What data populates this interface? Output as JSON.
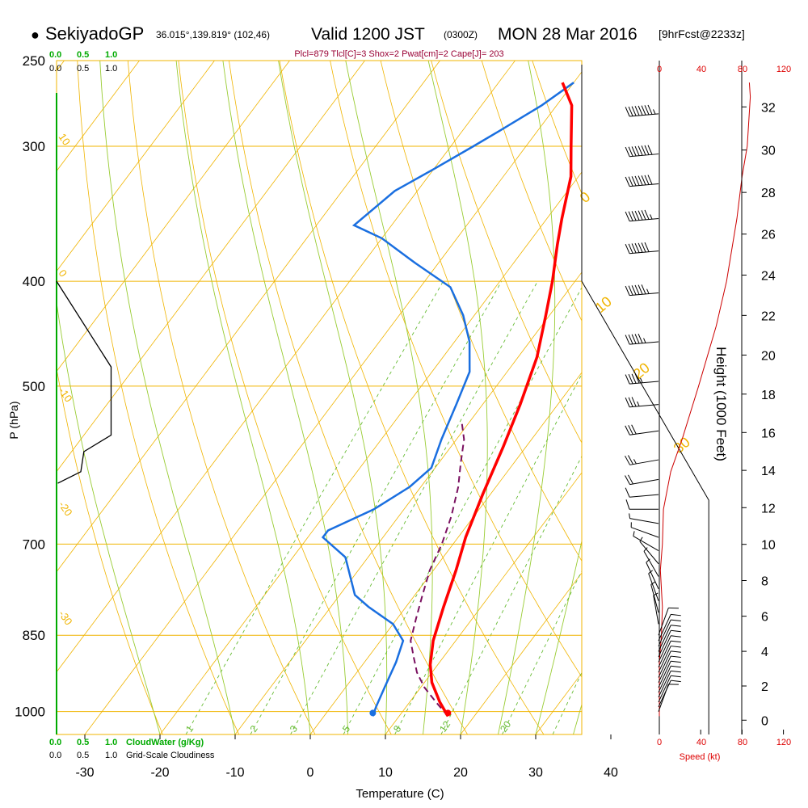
{
  "header": {
    "bullet": "●",
    "station": "SekiyadoGP",
    "coords": "36.015°,139.819° (102,46)",
    "valid": "Valid 1200 JST",
    "utc": "(0300Z)",
    "date": "MON 28 Mar 2016",
    "fcst": "[9hrFcst@2233z]"
  },
  "indices": "Plcl=879 Tlcl[C]=3 Shox=2 Pwat[cm]=2 Cape[J]= 203",
  "colors": {
    "isobar": "#f0b400",
    "dry_adiabat": "#f0b400",
    "moist_adiabat": "#99cc33",
    "mixing_ratio": "#66bb33",
    "temperature": "#ff0000",
    "dewpoint": "#1a6fe0",
    "parcel": "#7a1060",
    "cloud_water": "#00aa00",
    "wind_speed": "#cc0000",
    "cloudiness": "#000000",
    "wind_barb": "#000000"
  },
  "legend": {
    "cloudwater_scale": [
      "0.0",
      "0.5",
      "1.0"
    ],
    "cloudiness_scale": [
      "0.0",
      "0.5",
      "1.0"
    ],
    "cloudwater_label": "CloudWater (g/Kg)",
    "cloudiness_label": "Grid-Scale Cloudiness",
    "speed_ticks": [
      "0",
      "40",
      "80",
      "120"
    ],
    "speed_label": "Speed (kt)"
  },
  "chart_data": {
    "type": "skew-t log-p sounding",
    "xlabel": "Temperature (C)",
    "ylabel": "P (hPa)",
    "y2label": "Height (1000 Feet)",
    "x_ticks": [
      -30,
      -20,
      -10,
      0,
      10,
      20,
      30,
      40
    ],
    "pressure_ticks": [
      250,
      300,
      400,
      500,
      700,
      850,
      1000
    ],
    "height_ticks_kft": [
      0,
      2,
      4,
      6,
      8,
      10,
      12,
      14,
      16,
      18,
      20,
      22,
      24,
      26,
      28,
      30,
      32
    ],
    "isotherm_labels": [
      "10",
      "0",
      "-10",
      "-20",
      "-30"
    ],
    "isotherm_right_labels": [
      "0",
      "10",
      "20",
      "30"
    ],
    "mixing_ratio_labels": [
      "1",
      "2",
      "3",
      "5",
      "8",
      "12",
      "20"
    ],
    "series": [
      {
        "name": "temperature",
        "points": [
          [
            16.5,
            1010
          ],
          [
            14,
            980
          ],
          [
            11,
            940
          ],
          [
            9,
            905
          ],
          [
            7,
            860
          ],
          [
            5,
            800
          ],
          [
            3,
            740
          ],
          [
            1,
            690
          ],
          [
            -1,
            630
          ],
          [
            -3,
            570
          ],
          [
            -5,
            520
          ],
          [
            -7.5,
            470
          ],
          [
            -10.5,
            430
          ],
          [
            -13,
            400
          ],
          [
            -16,
            370
          ],
          [
            -18,
            350
          ],
          [
            -21,
            320
          ],
          [
            -24,
            300
          ],
          [
            -28,
            275
          ],
          [
            -31.5,
            262
          ]
        ]
      },
      {
        "name": "dewpoint",
        "points": [
          [
            6.5,
            1010
          ],
          [
            6,
            990
          ],
          [
            5.2,
            950
          ],
          [
            4.2,
            900
          ],
          [
            3,
            860
          ],
          [
            0,
            830
          ],
          [
            -5,
            800
          ],
          [
            -8,
            780
          ],
          [
            -13,
            720
          ],
          [
            -18,
            690
          ],
          [
            -18,
            680
          ],
          [
            -14,
            650
          ],
          [
            -11.5,
            620
          ],
          [
            -10.5,
            595
          ],
          [
            -12,
            560
          ],
          [
            -13.5,
            520
          ],
          [
            -15,
            485
          ],
          [
            -18,
            455
          ],
          [
            -21.5,
            430
          ],
          [
            -26,
            405
          ],
          [
            -33,
            385
          ],
          [
            -40,
            365
          ],
          [
            -45,
            355
          ],
          [
            -43,
            330
          ],
          [
            -40,
            315
          ],
          [
            -37,
            300
          ],
          [
            -35,
            290
          ],
          [
            -32,
            275
          ],
          [
            -30,
            262
          ]
        ]
      },
      {
        "name": "parcel",
        "points": [
          [
            16.5,
            1010
          ],
          [
            13.5,
            980
          ],
          [
            10.5,
            950
          ],
          [
            8,
            920
          ],
          [
            6,
            890
          ],
          [
            4,
            860
          ],
          [
            2.5,
            820
          ],
          [
            1,
            780
          ],
          [
            -0.5,
            740
          ],
          [
            -1.5,
            700
          ],
          [
            -3,
            660
          ],
          [
            -5,
            620
          ],
          [
            -7,
            590
          ],
          [
            -9,
            560
          ],
          [
            -11,
            540
          ]
        ]
      },
      {
        "name": "wind_speed",
        "points_kt": [
          [
            0,
            1010
          ],
          [
            0,
            900
          ],
          [
            2,
            850
          ],
          [
            3,
            800
          ],
          [
            1,
            740
          ],
          [
            3,
            700
          ],
          [
            4,
            650
          ],
          [
            11,
            600
          ],
          [
            22,
            560
          ],
          [
            38,
            500
          ],
          [
            55,
            440
          ],
          [
            65,
            400
          ],
          [
            75,
            350
          ],
          [
            80,
            320
          ],
          [
            85,
            300
          ],
          [
            88,
            270
          ],
          [
            87,
            262
          ]
        ]
      },
      {
        "name": "cloudiness",
        "points": [
          [
            0,
            400
          ],
          [
            0.9,
            480
          ],
          [
            0.9,
            555
          ],
          [
            0.45,
            575
          ],
          [
            0.4,
            600
          ],
          [
            0.02,
            615
          ]
        ]
      }
    ],
    "wind_barbs_hpa_kt_dir": [
      [
        1000,
        8,
        20
      ],
      [
        990,
        8,
        25
      ],
      [
        980,
        9,
        25
      ],
      [
        970,
        10,
        25
      ],
      [
        960,
        10,
        25
      ],
      [
        950,
        10,
        25
      ],
      [
        940,
        10,
        25
      ],
      [
        930,
        10,
        25
      ],
      [
        920,
        10,
        25
      ],
      [
        910,
        10,
        25
      ],
      [
        900,
        10,
        25
      ],
      [
        890,
        10,
        25
      ],
      [
        880,
        10,
        25
      ],
      [
        870,
        9,
        25
      ],
      [
        860,
        8,
        25
      ],
      [
        850,
        8,
        20
      ],
      [
        830,
        5,
        350
      ],
      [
        810,
        5,
        345
      ],
      [
        790,
        5,
        340
      ],
      [
        770,
        5,
        335
      ],
      [
        750,
        4,
        330
      ],
      [
        730,
        5,
        320
      ],
      [
        710,
        5,
        300
      ],
      [
        690,
        5,
        290
      ],
      [
        670,
        6,
        280
      ],
      [
        650,
        10,
        270
      ],
      [
        630,
        12,
        265
      ],
      [
        610,
        20,
        260
      ],
      [
        585,
        25,
        260
      ],
      [
        550,
        30,
        262
      ],
      [
        520,
        35,
        265
      ],
      [
        495,
        45,
        265
      ],
      [
        455,
        55,
        265
      ],
      [
        410,
        65,
        265
      ],
      [
        375,
        70,
        265
      ],
      [
        350,
        75,
        265
      ],
      [
        325,
        80,
        265
      ],
      [
        305,
        80,
        265
      ],
      [
        280,
        85,
        265
      ]
    ]
  }
}
